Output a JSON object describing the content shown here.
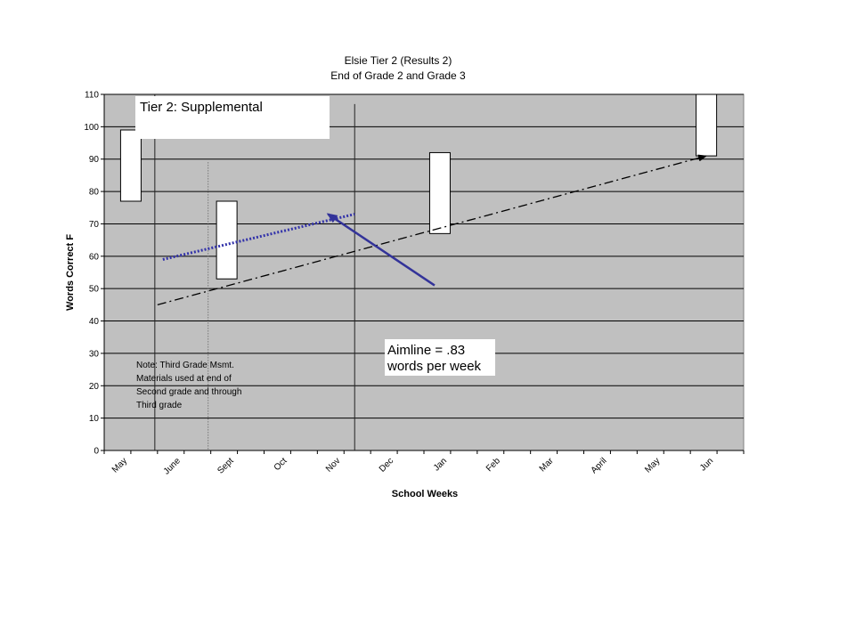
{
  "chart_data": {
    "type": "line",
    "title": "Elsie Tier 2 (Results 2)",
    "subtitle": "End of Grade 2 and Grade 3",
    "xlabel": "School Weeks",
    "ylabel": "Words Correct F",
    "categories": [
      "May",
      "June",
      "Sept",
      "Oct",
      "Nov",
      "Dec",
      "Jan",
      "Feb",
      "Mar",
      "April",
      "May",
      "Jun"
    ],
    "ylim": [
      0,
      110
    ],
    "yticks": [
      0,
      10,
      20,
      30,
      40,
      50,
      60,
      70,
      80,
      90,
      100,
      110
    ],
    "grid": true,
    "colors": {
      "plot_background": "#c0c0c0",
      "trend_line": "#3333aa",
      "arrow": "#333399",
      "aimline": "#000000"
    },
    "range_bars": [
      {
        "x": 0.0,
        "low": 77,
        "high": 99
      },
      {
        "x": 1.8,
        "low": 53,
        "high": 77
      },
      {
        "x": 5.8,
        "low": 67,
        "high": 92
      },
      {
        "x": 10.8,
        "low": 91,
        "high": 110
      }
    ],
    "aimline": {
      "x": [
        0.5,
        10.8
      ],
      "y": [
        45,
        91
      ]
    },
    "trend_line": {
      "x": [
        0.6,
        4.2
      ],
      "y": [
        59,
        73
      ]
    },
    "arrow": {
      "x": [
        5.7,
        3.7
      ],
      "y": [
        51,
        73
      ]
    },
    "phase_lines": [
      {
        "x": 0.45,
        "style": "solid"
      },
      {
        "x": 1.45,
        "style": "dotted"
      },
      {
        "x": 4.2,
        "style": "solid"
      }
    ],
    "annotations": {
      "phase_label": "Tier 2: Supplemental",
      "aimline_note": [
        "Aimline = .83",
        "words per week"
      ],
      "material_note": [
        "Note:   Third Grade Msmt.",
        "Materials used at end of",
        "Second grade and through",
        "Third grade"
      ]
    }
  }
}
